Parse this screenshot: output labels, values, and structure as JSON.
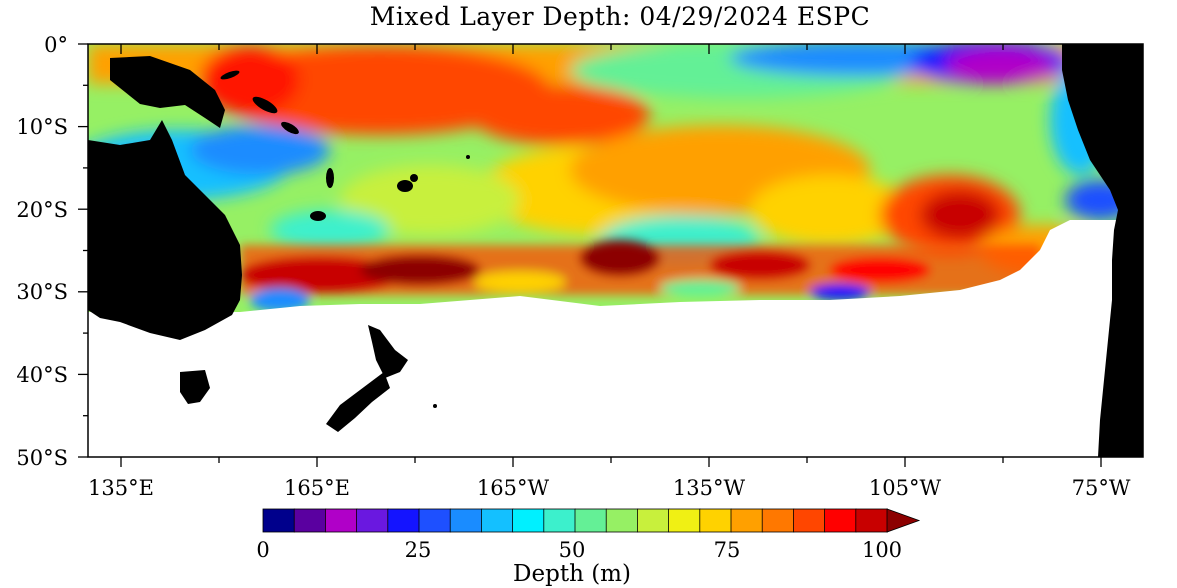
{
  "title": "Mixed Layer Depth: 04/29/2024 ESPC",
  "map": {
    "lat_labels": [
      "0°",
      "10°S",
      "20°S",
      "30°S",
      "40°S",
      "50°S"
    ],
    "lon_labels": [
      "135°E",
      "165°E",
      "165°W",
      "135°W",
      "105°W",
      "75°W"
    ],
    "land_color": "#000000",
    "missing_color": "#ffffff"
  },
  "colorbar": {
    "title": "Depth (m)",
    "tick_labels": [
      "0",
      "25",
      "50",
      "75",
      "100"
    ],
    "colors": [
      "#00008c",
      "#5a00a0",
      "#b000c8",
      "#6a18e0",
      "#1414ff",
      "#1e50ff",
      "#1a8cff",
      "#14c0ff",
      "#00f0ff",
      "#3cf0cc",
      "#64f096",
      "#96f064",
      "#c8f03c",
      "#f0f014",
      "#ffd200",
      "#ffa000",
      "#ff7800",
      "#ff4600",
      "#ff0000",
      "#c80000",
      "#8c0000"
    ],
    "extend": "max"
  }
}
